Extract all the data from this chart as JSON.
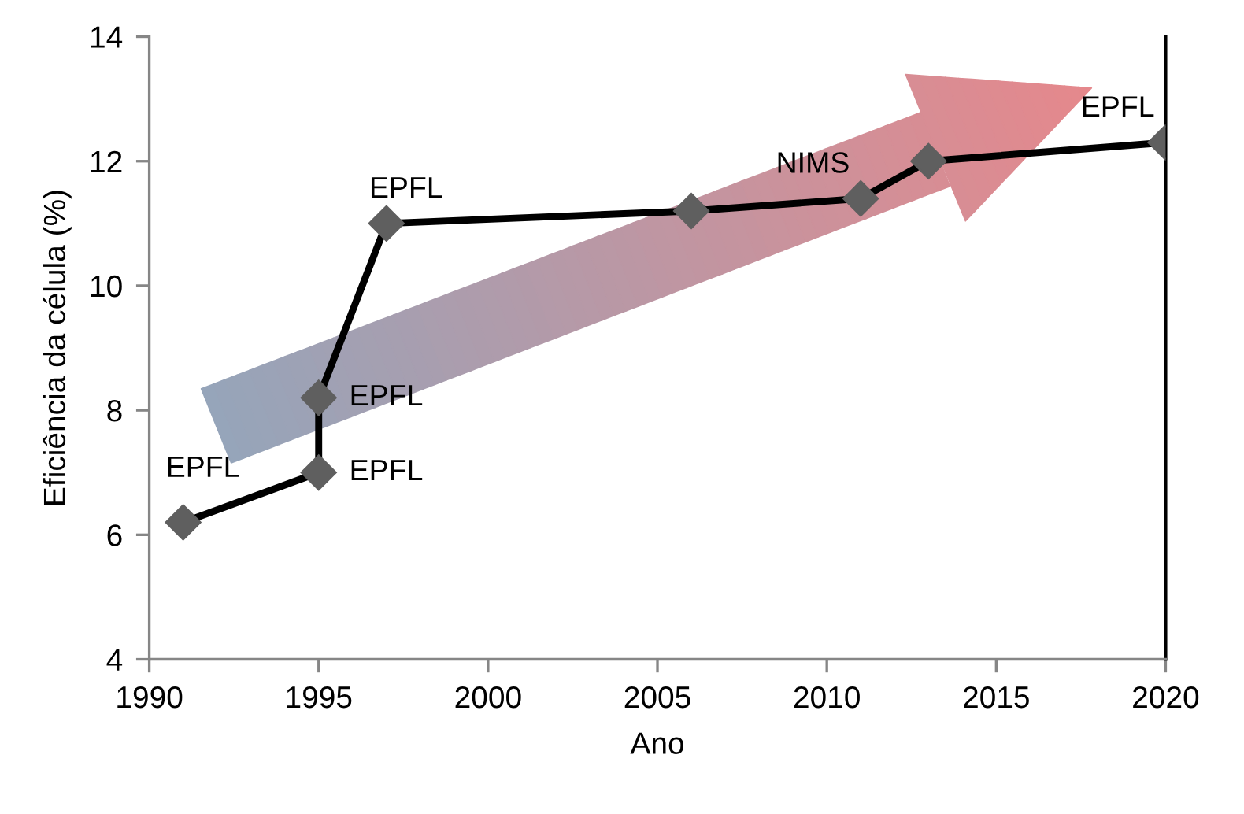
{
  "chart_data": {
    "type": "line",
    "xlabel": "Ano",
    "ylabel": "Eficiência da célula (%)",
    "series": [
      {
        "color": "#000000",
        "colors": [
          "#5f5f5f",
          "#5f5f5f",
          "#5f5f5f",
          "#5f5f5f",
          "#5f5f5f",
          "#5f5f5f",
          "#5f5f5f",
          "#5f5f5f"
        ],
        "x": [
          1991,
          1995,
          1995,
          1997,
          2006,
          2011,
          2013,
          2020
        ],
        "values": [
          6.2,
          7.0,
          8.2,
          11.0,
          11.2,
          11.4,
          12.0,
          12.3
        ]
      }
    ],
    "marker": "diamond",
    "line_style": "solid",
    "xlim": [
      1990,
      2020
    ],
    "xticks": [
      1990,
      1995,
      2000,
      2005,
      2010,
      2015,
      2020
    ],
    "ylim": [
      4,
      14
    ],
    "yticks": [
      4,
      6,
      8,
      10,
      12,
      14
    ],
    "ref_lines": [
      {
        "axis": "x",
        "value": 2020,
        "color": "#000000"
      }
    ],
    "annotations": [
      {
        "text": "EPFL",
        "x": 1991,
        "y": 6.2
      },
      {
        "text": "EPFL",
        "x": 1995,
        "y": 7.0
      },
      {
        "text": "EPFL",
        "x": 1995,
        "y": 8.2
      },
      {
        "text": "EPFL",
        "x": 1997,
        "y": 11.0
      },
      {
        "text": "NIMS",
        "x": 2011,
        "y": 11.4
      },
      {
        "text": "EPFL",
        "x": 2020,
        "y": 12.3
      }
    ]
  }
}
